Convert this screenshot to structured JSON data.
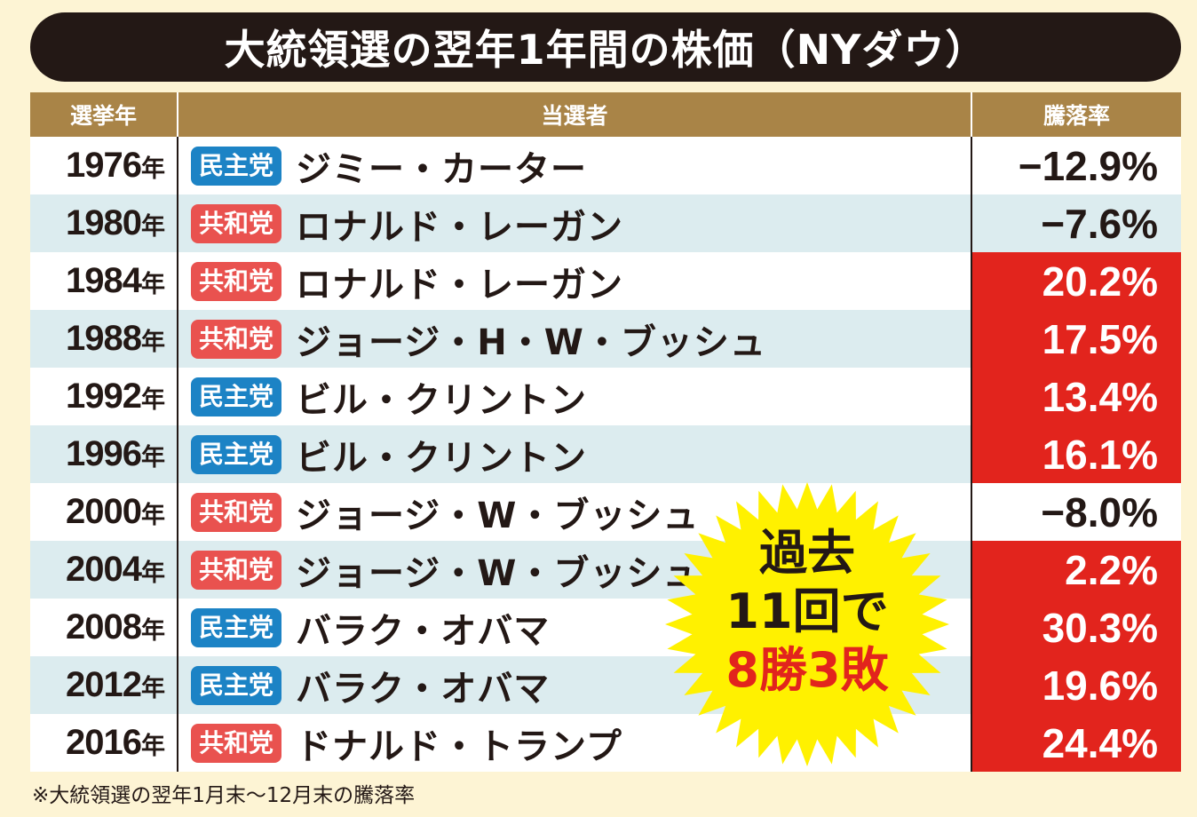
{
  "title": "大統領選の翌年1年間の株価（NYダウ）",
  "colors": {
    "democrat": "#1c83c5",
    "republican": "#e9524f",
    "gain_cell": "#e2241d",
    "header": "#a98447",
    "burst": "#fff100"
  },
  "chart_data": {
    "type": "table",
    "columns": [
      "選挙年",
      "当選者",
      "騰落率"
    ],
    "rows": [
      {
        "year": "1976",
        "year_suffix": "年",
        "party": "民主党",
        "party_key": "democrat",
        "name": "ジミー・カーター",
        "change": "−12.9%",
        "change_value": -12.9
      },
      {
        "year": "1980",
        "year_suffix": "年",
        "party": "共和党",
        "party_key": "republican",
        "name": "ロナルド・レーガン",
        "change": "−7.6%",
        "change_value": -7.6
      },
      {
        "year": "1984",
        "year_suffix": "年",
        "party": "共和党",
        "party_key": "republican",
        "name": "ロナルド・レーガン",
        "change": "20.2%",
        "change_value": 20.2
      },
      {
        "year": "1988",
        "year_suffix": "年",
        "party": "共和党",
        "party_key": "republican",
        "name": "ジョージ・H・W・ブッシュ",
        "change": "17.5%",
        "change_value": 17.5
      },
      {
        "year": "1992",
        "year_suffix": "年",
        "party": "民主党",
        "party_key": "democrat",
        "name": "ビル・クリントン",
        "change": "13.4%",
        "change_value": 13.4
      },
      {
        "year": "1996",
        "year_suffix": "年",
        "party": "民主党",
        "party_key": "democrat",
        "name": "ビル・クリントン",
        "change": "16.1%",
        "change_value": 16.1
      },
      {
        "year": "2000",
        "year_suffix": "年",
        "party": "共和党",
        "party_key": "republican",
        "name": "ジョージ・W・ブッシュ",
        "change": "−8.0%",
        "change_value": -8.0
      },
      {
        "year": "2004",
        "year_suffix": "年",
        "party": "共和党",
        "party_key": "republican",
        "name": "ジョージ・W・ブッシュ",
        "change": "2.2%",
        "change_value": 2.2
      },
      {
        "year": "2008",
        "year_suffix": "年",
        "party": "民主党",
        "party_key": "democrat",
        "name": "バラク・オバマ",
        "change": "30.3%",
        "change_value": 30.3
      },
      {
        "year": "2012",
        "year_suffix": "年",
        "party": "民主党",
        "party_key": "democrat",
        "name": "バラク・オバマ",
        "change": "19.6%",
        "change_value": 19.6
      },
      {
        "year": "2016",
        "year_suffix": "年",
        "party": "共和党",
        "party_key": "republican",
        "name": "ドナルド・トランプ",
        "change": "24.4%",
        "change_value": 24.4
      }
    ]
  },
  "callout": {
    "line1": "過去",
    "line2": "11回で",
    "line3": "8勝3敗"
  },
  "footnote": "※大統領選の翌年1月末〜12月末の騰落率"
}
